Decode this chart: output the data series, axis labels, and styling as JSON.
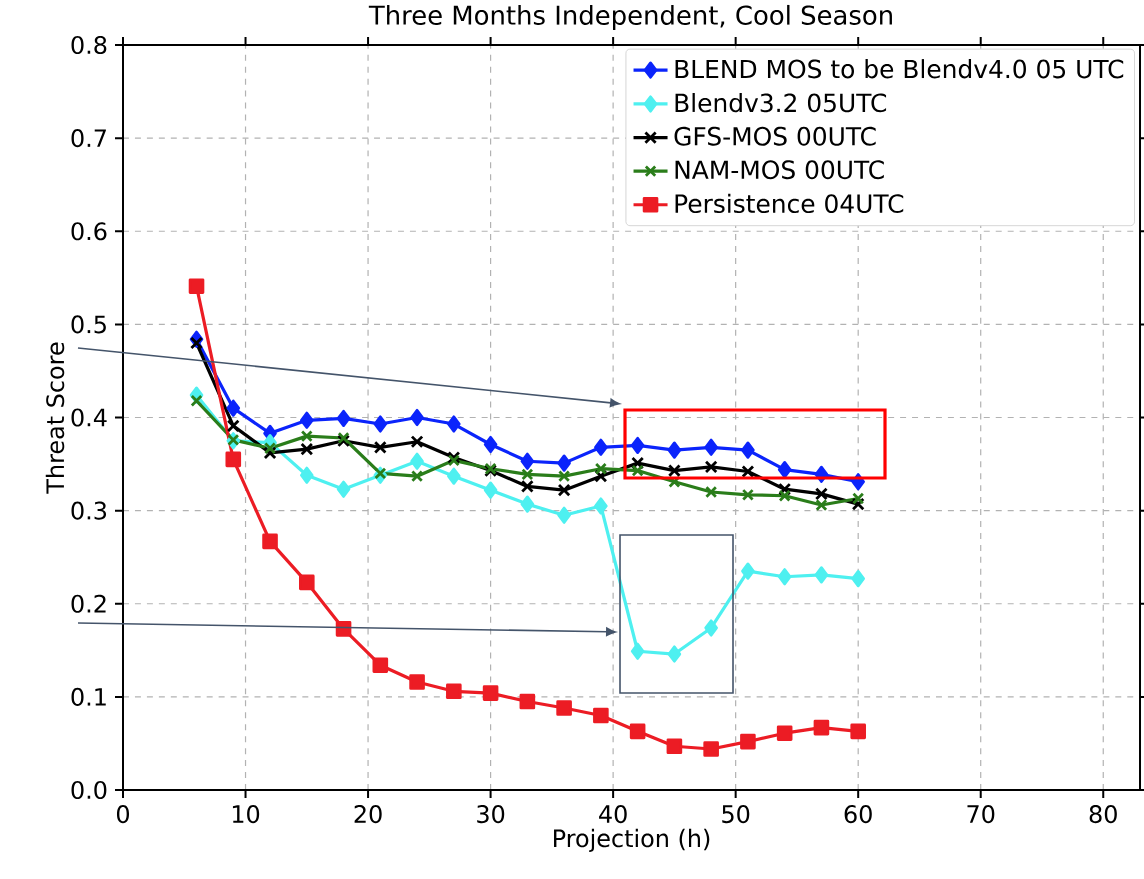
{
  "chart_data": {
    "type": "line",
    "title": "Three Months Independent, Cool Season",
    "xlabel": "Projection (h)",
    "ylabel": "Threat Score",
    "x": [
      6,
      9,
      12,
      15,
      18,
      21,
      24,
      27,
      30,
      33,
      36,
      39,
      42,
      45,
      48,
      51,
      54,
      57,
      60
    ],
    "series": [
      {
        "name": "BLEND MOS to be Blendv4.0 05 UTC",
        "color": "#0b24fb",
        "marker": "diamond",
        "values": [
          0.484,
          0.41,
          0.383,
          0.397,
          0.399,
          0.393,
          0.4,
          0.393,
          0.371,
          0.353,
          0.351,
          0.368,
          0.37,
          0.365,
          0.368,
          0.365,
          0.344,
          0.339,
          0.331
        ]
      },
      {
        "name": "Blendv3.2 05UTC",
        "color": "#4ef0f0",
        "marker": "diamond",
        "values": [
          0.424,
          0.375,
          0.373,
          0.338,
          0.323,
          0.338,
          0.353,
          0.337,
          0.322,
          0.307,
          0.295,
          0.305,
          0.149,
          0.146,
          0.174,
          0.235,
          0.229,
          0.231,
          0.227
        ]
      },
      {
        "name": "GFS-MOS 00UTC",
        "color": "#000000",
        "marker": "cross",
        "values": [
          0.48,
          0.391,
          0.362,
          0.366,
          0.375,
          0.368,
          0.374,
          0.357,
          0.343,
          0.326,
          0.322,
          0.337,
          0.351,
          0.343,
          0.347,
          0.342,
          0.323,
          0.318,
          0.307
        ]
      },
      {
        "name": "NAM-MOS 00UTC",
        "color": "#2a7d1a",
        "marker": "cross",
        "values": [
          0.418,
          0.376,
          0.367,
          0.38,
          0.378,
          0.34,
          0.337,
          0.354,
          0.345,
          0.339,
          0.337,
          0.345,
          0.343,
          0.331,
          0.32,
          0.317,
          0.316,
          0.306,
          0.313
        ]
      },
      {
        "name": "Persistence 04UTC",
        "color": "#ec1c24",
        "marker": "square",
        "values": [
          0.541,
          0.355,
          0.267,
          0.223,
          0.173,
          0.134,
          0.116,
          0.106,
          0.104,
          0.095,
          0.088,
          0.08,
          0.063,
          0.047,
          0.044,
          0.052,
          0.061,
          0.067,
          0.063
        ]
      }
    ],
    "xlim": [
      0,
      83
    ],
    "ylim": [
      0,
      0.8
    ],
    "xticks": [
      0,
      10,
      20,
      30,
      40,
      50,
      60,
      70,
      80
    ],
    "yticks": [
      {
        "value": 0,
        "label": "0.0"
      },
      0.1,
      0.2,
      0.3,
      0.4,
      0.5,
      0.6,
      0.7,
      0.8
    ],
    "grid": true,
    "legend": "top right"
  }
}
